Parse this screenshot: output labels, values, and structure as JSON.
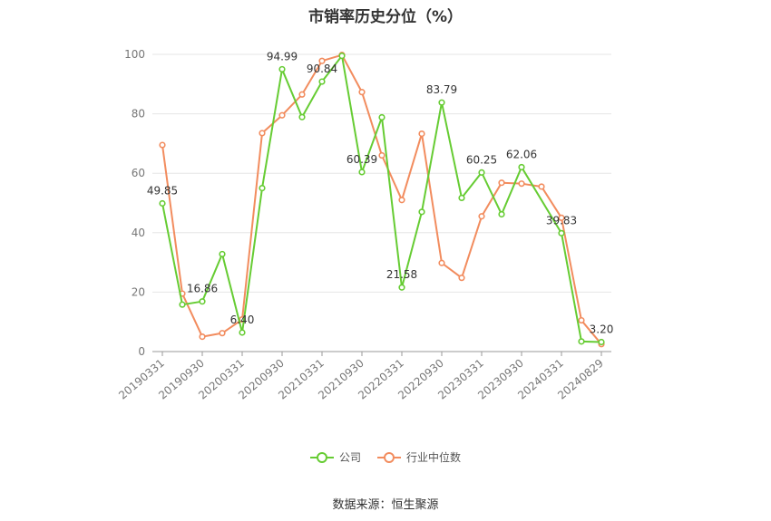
{
  "chart_data": {
    "type": "line",
    "title": "市销率历史分位（%）",
    "source": "数据来源：恒生聚源",
    "xlabel": "",
    "ylabel": "",
    "ylim": [
      0,
      100
    ],
    "yticks": [
      0,
      20,
      40,
      60,
      80,
      100
    ],
    "grid": true,
    "legend_position": "bottom",
    "x_tick_labels": [
      "20190331",
      "20190930",
      "20200331",
      "20200930",
      "20210331",
      "20210930",
      "20220331",
      "20220930",
      "20230331",
      "20230930",
      "20240331",
      "20240829"
    ],
    "x": [
      "20190331",
      "20190630",
      "20190930",
      "20191231",
      "20200331",
      "20200630",
      "20200930",
      "20201231",
      "20210331",
      "20210630",
      "20210930",
      "20211231",
      "20220331",
      "20220630",
      "20220930",
      "20221231",
      "20230331",
      "20230630",
      "20230930",
      "20231231",
      "20240331",
      "20240630",
      "20240829"
    ],
    "series": [
      {
        "name": "公司",
        "color": "#66cc33",
        "values": [
          49.85,
          15.8,
          16.86,
          32.8,
          6.4,
          55.0,
          94.99,
          78.9,
          90.84,
          99.5,
          60.39,
          78.8,
          21.58,
          47.0,
          83.79,
          51.7,
          60.25,
          46.2,
          62.06,
          null,
          39.83,
          3.4,
          3.2
        ],
        "point_labels": [
          "49.85",
          "",
          "16.86",
          "",
          "6.40",
          "",
          "94.99",
          "",
          "90.84",
          "",
          "60.39",
          "",
          "21.58",
          "",
          "83.79",
          "",
          "60.25",
          "",
          "62.06",
          "",
          "39.83",
          "",
          "3.20"
        ]
      },
      {
        "name": "行业中位数",
        "color": "#f28c5e",
        "values": [
          69.5,
          19.5,
          5.0,
          6.2,
          10.8,
          73.5,
          79.5,
          86.5,
          97.8,
          99.8,
          87.3,
          66.0,
          51.0,
          73.3,
          29.8,
          24.8,
          45.5,
          56.8,
          56.5,
          55.5,
          45.0,
          10.5,
          2.5
        ]
      }
    ]
  }
}
